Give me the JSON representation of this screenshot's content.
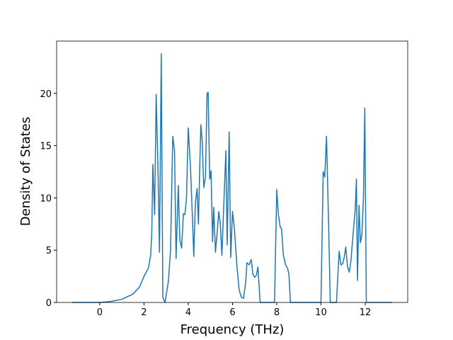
{
  "chart_data": {
    "type": "line",
    "xlabel": "Frequency (THz)",
    "ylabel": "Density of States",
    "x": [
      -1.25,
      0,
      0.5,
      1.0,
      1.5,
      1.8,
      2.0,
      2.2,
      2.3,
      2.35,
      2.4,
      2.48,
      2.55,
      2.63,
      2.7,
      2.78,
      2.85,
      2.95,
      3.1,
      3.2,
      3.3,
      3.38,
      3.45,
      3.55,
      3.62,
      3.7,
      3.78,
      3.85,
      3.92,
      4.0,
      4.1,
      4.2,
      4.25,
      4.32,
      4.4,
      4.46,
      4.52,
      4.57,
      4.63,
      4.7,
      4.78,
      4.85,
      4.9,
      4.97,
      5.03,
      5.1,
      5.15,
      5.23,
      5.3,
      5.38,
      5.45,
      5.52,
      5.6,
      5.7,
      5.76,
      5.85,
      5.92,
      6.0,
      6.08,
      6.2,
      6.3,
      6.4,
      6.5,
      6.6,
      6.65,
      6.75,
      6.85,
      6.92,
      7.0,
      7.08,
      7.15,
      7.25,
      7.9,
      8.0,
      8.07,
      8.15,
      8.22,
      8.3,
      8.4,
      8.5,
      8.55,
      8.62,
      10.0,
      10.1,
      10.17,
      10.25,
      10.35,
      10.42,
      10.7,
      10.82,
      10.9,
      10.98,
      11.05,
      11.12,
      11.2,
      11.28,
      11.35,
      11.45,
      11.55,
      11.6,
      11.65,
      11.72,
      11.78,
      11.85,
      11.92,
      11.98,
      12.05,
      13.2
    ],
    "values": [
      0,
      0,
      0.1,
      0.3,
      0.8,
      1.5,
      2.5,
      3.3,
      4.5,
      6.5,
      13.2,
      8.4,
      19.9,
      13,
      4.8,
      23.8,
      0.5,
      0,
      2,
      5,
      15.9,
      14.5,
      4.2,
      11.2,
      6,
      5.2,
      8.5,
      8.4,
      10,
      16.7,
      13,
      7.5,
      4.4,
      9.5,
      10.9,
      7.5,
      13,
      17,
      15.5,
      11,
      12,
      20,
      20.1,
      11.8,
      12.6,
      5.8,
      9.1,
      4.8,
      6.5,
      8.7,
      7.5,
      4.5,
      9,
      14.5,
      5.5,
      16.3,
      4.3,
      8.7,
      7.2,
      3.5,
      1.2,
      0.5,
      0.4,
      2,
      3.8,
      3.6,
      4.1,
      2.7,
      2.4,
      2.6,
      3.4,
      0,
      0,
      10.8,
      8.5,
      7.3,
      7,
      4.5,
      3.6,
      3.2,
      2.7,
      0,
      0,
      12.5,
      12,
      15.9,
      7,
      0,
      0,
      4.9,
      3.6,
      3.7,
      4.3,
      5.3,
      3.4,
      2.9,
      3.9,
      6.5,
      9,
      11.8,
      2.1,
      9.3,
      5.7,
      6.5,
      10,
      18.6,
      0,
      0
    ],
    "color": "#1f77b4",
    "xlim": [
      -1.95,
      13.92
    ],
    "xticks": [
      0,
      2,
      4,
      6,
      8,
      10,
      12
    ],
    "ylim": [
      0,
      25
    ],
    "yticks": [
      0,
      5,
      10,
      15,
      20
    ]
  }
}
